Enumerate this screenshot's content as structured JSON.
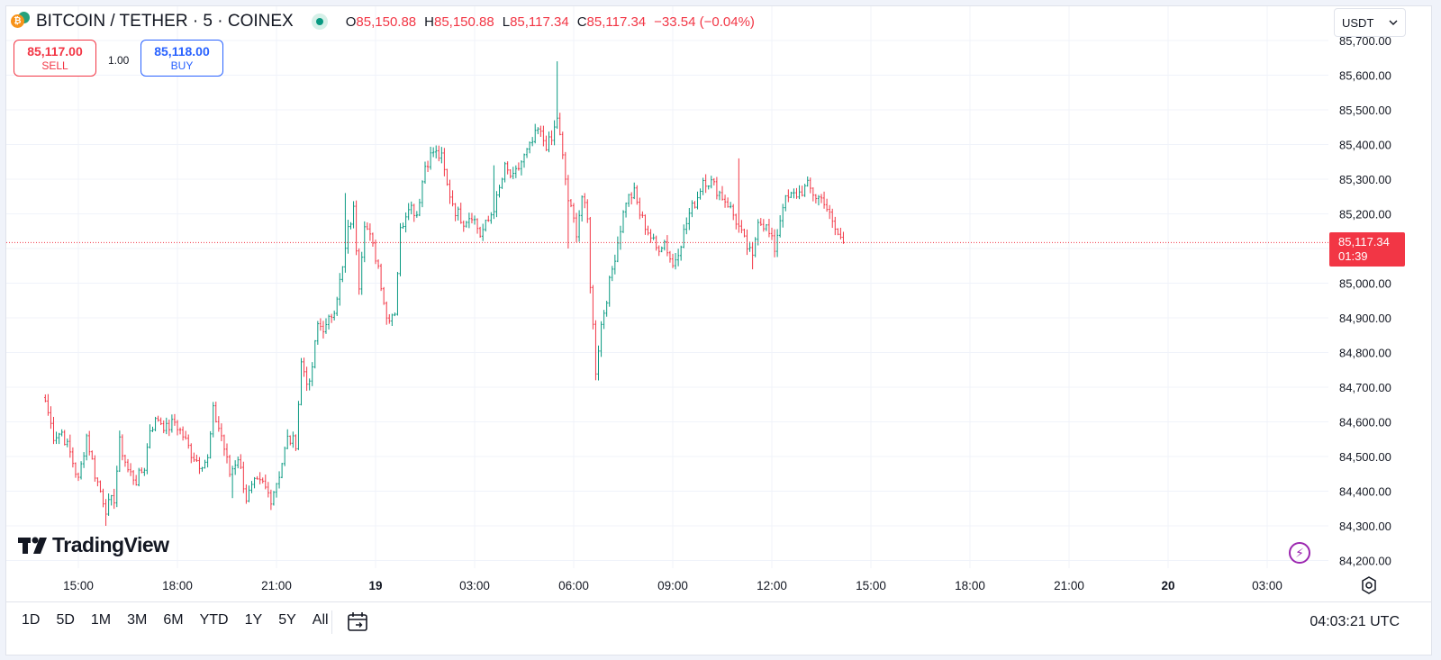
{
  "header": {
    "symbol": "BITCOIN / TETHER · 5 · COINEX",
    "ohlc": [
      {
        "label": "O",
        "value": "85,150.88"
      },
      {
        "label": "H",
        "value": "85,150.88"
      },
      {
        "label": "L",
        "value": "85,117.34"
      },
      {
        "label": "C",
        "value": "85,117.34"
      }
    ],
    "change": "−33.54 (−0.04%)"
  },
  "trade": {
    "sell_price": "85,117.00",
    "sell_label": "SELL",
    "quantity": "1.00",
    "buy_price": "85,118.00",
    "buy_label": "BUY"
  },
  "currency": "USDT",
  "last_price": {
    "price": "85,117.34",
    "countdown": "01:39"
  },
  "logo_text": "TradingView",
  "bottom_bar": {
    "ranges": [
      "1D",
      "5D",
      "1M",
      "3M",
      "6M",
      "YTD",
      "1Y",
      "5Y",
      "All"
    ],
    "clock": "04:03:21 UTC"
  },
  "colors": {
    "up": "#089981",
    "down": "#f23645",
    "grid": "#f0f3fa",
    "axis_text": "#131722"
  },
  "icons": [
    "bitcoin-icon",
    "tether-icon",
    "live-status-icon",
    "chevron-down-icon",
    "lightning-icon",
    "settings-gear-icon",
    "calendar-goto-icon"
  ],
  "chart_data": {
    "type": "candlestick",
    "ylim": [
      84150,
      85700
    ],
    "yticks": [
      84200,
      84300,
      84400,
      84500,
      84600,
      84700,
      84800,
      84900,
      85000,
      85100,
      85200,
      85300,
      85400,
      85500,
      85600,
      85700
    ],
    "ytick_labels": [
      "84,200.00",
      "84,300.00",
      "84,400.00",
      "84,500.00",
      "84,600.00",
      "84,700.00",
      "84,800.00",
      "84,900.00",
      "85,000.00",
      "85,100.00",
      "85,200.00",
      "85,300.00",
      "85,400.00",
      "85,500.00",
      "85,600.00",
      "85,700.00"
    ],
    "xticks": [
      {
        "label": "15:00",
        "bold": false
      },
      {
        "label": "18:00",
        "bold": false
      },
      {
        "label": "21:00",
        "bold": false
      },
      {
        "label": "19",
        "bold": true
      },
      {
        "label": "03:00",
        "bold": false
      },
      {
        "label": "06:00",
        "bold": false
      },
      {
        "label": "09:00",
        "bold": false
      },
      {
        "label": "12:00",
        "bold": false
      },
      {
        "label": "15:00",
        "bold": false
      },
      {
        "label": "18:00",
        "bold": false
      },
      {
        "label": "21:00",
        "bold": false
      },
      {
        "label": "20",
        "bold": true
      },
      {
        "label": "03:00",
        "bold": false
      }
    ],
    "first_candle_index": -12,
    "candles_per_tick": 36,
    "last_price": 85117.34,
    "anchors": [
      [
        0,
        84660
      ],
      [
        3,
        84560
      ],
      [
        6,
        84570
      ],
      [
        9,
        84510
      ],
      [
        12,
        84430
      ],
      [
        15,
        84560
      ],
      [
        18,
        84450
      ],
      [
        22,
        84350
      ],
      [
        25,
        84380
      ],
      [
        27,
        84540
      ],
      [
        30,
        84460
      ],
      [
        33,
        84430
      ],
      [
        36,
        84470
      ],
      [
        38,
        84580
      ],
      [
        41,
        84610
      ],
      [
        44,
        84580
      ],
      [
        47,
        84600
      ],
      [
        50,
        84560
      ],
      [
        53,
        84510
      ],
      [
        56,
        84480
      ],
      [
        59,
        84490
      ],
      [
        61,
        84630
      ],
      [
        64,
        84560
      ],
      [
        67,
        84450
      ],
      [
        70,
        84500
      ],
      [
        73,
        84380
      ],
      [
        76,
        84420
      ],
      [
        79,
        84420
      ],
      [
        82,
        84380
      ],
      [
        85,
        84450
      ],
      [
        88,
        84550
      ],
      [
        91,
        84540
      ],
      [
        93,
        84770
      ],
      [
        96,
        84700
      ],
      [
        99,
        84880
      ],
      [
        102,
        84870
      ],
      [
        105,
        84930
      ],
      [
        108,
        85040
      ],
      [
        110,
        85150
      ],
      [
        112,
        85210
      ],
      [
        114,
        85000
      ],
      [
        116,
        85180
      ],
      [
        118,
        85130
      ],
      [
        121,
        85050
      ],
      [
        124,
        84900
      ],
      [
        127,
        84920
      ],
      [
        129,
        85150
      ],
      [
        132,
        85230
      ],
      [
        135,
        85200
      ],
      [
        138,
        85340
      ],
      [
        141,
        85380
      ],
      [
        144,
        85360
      ],
      [
        146,
        85280
      ],
      [
        149,
        85210
      ],
      [
        152,
        85180
      ],
      [
        155,
        85200
      ],
      [
        158,
        85140
      ],
      [
        161,
        85180
      ],
      [
        164,
        85240
      ],
      [
        167,
        85330
      ],
      [
        170,
        85300
      ],
      [
        173,
        85350
      ],
      [
        176,
        85390
      ],
      [
        179,
        85440
      ],
      [
        182,
        85400
      ],
      [
        184,
        85410
      ],
      [
        186,
        85480
      ],
      [
        188,
        85360
      ],
      [
        190,
        85240
      ],
      [
        193,
        85150
      ],
      [
        195,
        85250
      ],
      [
        197,
        85180
      ],
      [
        198,
        85000
      ],
      [
        200,
        84750
      ],
      [
        202,
        84880
      ],
      [
        205,
        85000
      ],
      [
        208,
        85120
      ],
      [
        211,
        85240
      ],
      [
        214,
        85260
      ],
      [
        216,
        85200
      ],
      [
        219,
        85150
      ],
      [
        222,
        85100
      ],
      [
        225,
        85120
      ],
      [
        228,
        85050
      ],
      [
        231,
        85120
      ],
      [
        234,
        85200
      ],
      [
        237,
        85250
      ],
      [
        239,
        85300
      ],
      [
        242,
        85290
      ],
      [
        245,
        85260
      ],
      [
        248,
        85230
      ],
      [
        251,
        85180
      ],
      [
        254,
        85120
      ],
      [
        257,
        85070
      ],
      [
        259,
        85190
      ],
      [
        262,
        85160
      ],
      [
        265,
        85100
      ],
      [
        268,
        85230
      ],
      [
        271,
        85250
      ],
      [
        274,
        85260
      ],
      [
        277,
        85280
      ],
      [
        280,
        85250
      ],
      [
        283,
        85240
      ],
      [
        286,
        85170
      ],
      [
        288,
        85140
      ],
      [
        290,
        85117.34
      ]
    ],
    "spikes": [
      [
        1,
        84680,
        "h"
      ],
      [
        22,
        84300,
        "l"
      ],
      [
        68,
        84380,
        "l"
      ],
      [
        109,
        85260,
        "h"
      ],
      [
        124,
        84880,
        "l"
      ],
      [
        163,
        85340,
        "h"
      ],
      [
        186,
        85640,
        "h"
      ],
      [
        190,
        85100,
        "l"
      ],
      [
        200,
        84720,
        "l"
      ],
      [
        252,
        85360,
        "h"
      ],
      [
        257,
        85040,
        "l"
      ]
    ]
  }
}
